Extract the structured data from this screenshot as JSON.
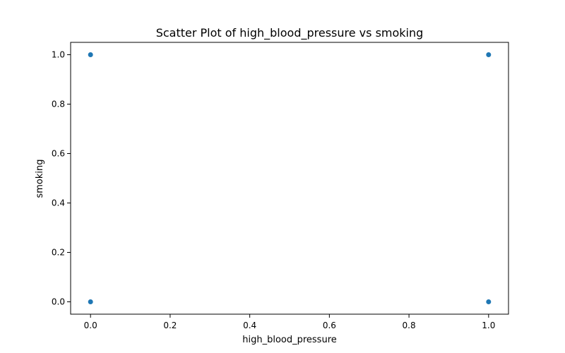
{
  "chart_data": {
    "type": "scatter",
    "title": "Scatter Plot of high_blood_pressure vs smoking",
    "xlabel": "high_blood_pressure",
    "ylabel": "smoking",
    "xlim": [
      -0.05,
      1.05
    ],
    "ylim": [
      -0.05,
      1.05
    ],
    "xticks": [
      0.0,
      0.2,
      0.4,
      0.6,
      0.8,
      1.0
    ],
    "xtick_labels": [
      "0.0",
      "0.2",
      "0.4",
      "0.6",
      "0.8",
      "1.0"
    ],
    "yticks": [
      0.0,
      0.2,
      0.4,
      0.6,
      0.8,
      1.0
    ],
    "ytick_labels": [
      "0.0",
      "0.2",
      "0.4",
      "0.6",
      "0.8",
      "1.0"
    ],
    "grid": false,
    "point_color": "#1f77b4",
    "points": [
      {
        "x": 0,
        "y": 1
      },
      {
        "x": 1,
        "y": 1
      },
      {
        "x": 0,
        "y": 0
      },
      {
        "x": 1,
        "y": 0
      }
    ]
  }
}
